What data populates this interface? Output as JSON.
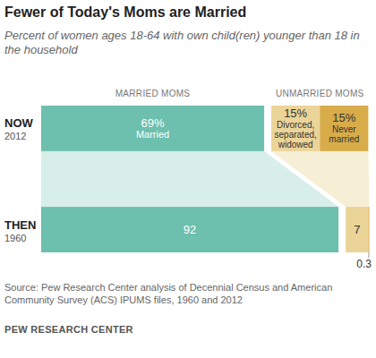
{
  "chart_data": {
    "type": "bar",
    "orientation": "horizontal",
    "stacked": true,
    "data_labels": true,
    "tick_labels": false,
    "title": "Fewer of Today's Moms are Married",
    "subtitle": "Percent of women ages 18-64 with own child(ren) younger than 18 in the household",
    "group_labels": [
      "MARRIED MOMS",
      "UNMARRIED MOMS"
    ],
    "categories": [
      "NOW",
      "THEN"
    ],
    "category_years": [
      "2012",
      "1960"
    ],
    "xlim": [
      0,
      100
    ],
    "series": [
      {
        "name": "Married",
        "color": "#6dbfae",
        "values": [
          69,
          92
        ],
        "value_labels": [
          "69%",
          "92"
        ]
      },
      {
        "name": "Divorced, separated, widowed",
        "color": "#ebd498",
        "values": [
          15,
          7
        ],
        "value_labels": [
          "15%",
          "7"
        ]
      },
      {
        "name": "Never married",
        "color": "#d9ac4a",
        "values": [
          15,
          0.3
        ],
        "value_labels": [
          "15%",
          "0.3"
        ]
      }
    ],
    "source": "Source: Pew Research Center analysis of Decennial Census and American Community Survey (ACS) IPUMS files, 1960 and 2012",
    "credit": "PEW RESEARCH CENTER"
  }
}
